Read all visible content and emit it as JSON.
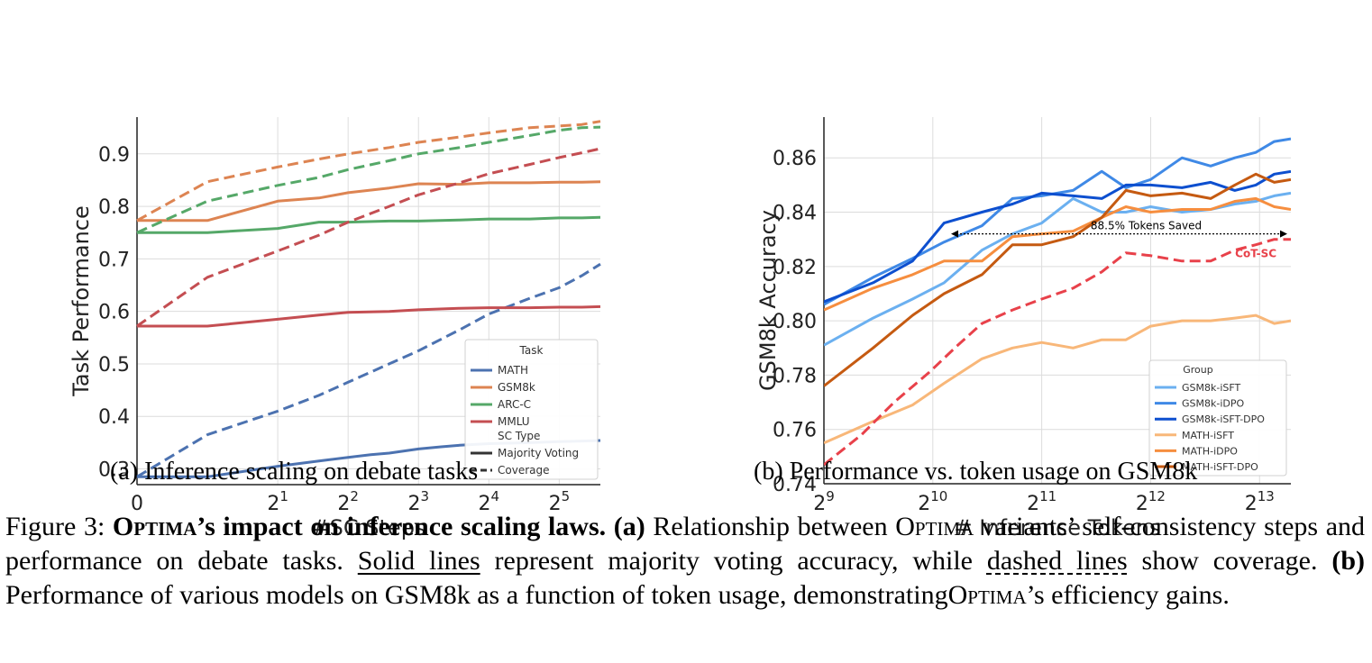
{
  "chart_data": [
    {
      "type": "line",
      "caption": "(a) Inference scaling on debate tasks",
      "xlabel": "#SC Steps",
      "ylabel": "Task Performance",
      "xscale": "symlog-base2",
      "xlim": [
        0,
        48
      ],
      "ylim": [
        0.27,
        0.97
      ],
      "xticks": [
        {
          "value": 0,
          "base": "0",
          "exp": ""
        },
        {
          "value": 2,
          "base": "2",
          "exp": "1"
        },
        {
          "value": 4,
          "base": "2",
          "exp": "2"
        },
        {
          "value": 8,
          "base": "2",
          "exp": "3"
        },
        {
          "value": 16,
          "base": "2",
          "exp": "4"
        },
        {
          "value": 32,
          "base": "2",
          "exp": "5"
        }
      ],
      "yticks": [
        0.3,
        0.4,
        0.5,
        0.6,
        0.7,
        0.8,
        0.9
      ],
      "grid": true,
      "legend": {
        "placement": "bottom-right",
        "task_title": "Task",
        "sc_title": "SC Type",
        "tasks": [
          "MATH",
          "GSM8k",
          "ARC-C",
          "MMLU"
        ],
        "sc_types": [
          {
            "label": "Majority Voting",
            "style": "solid"
          },
          {
            "label": "Coverage",
            "style": "dashed"
          }
        ]
      },
      "series": [
        {
          "name": "MATH",
          "sc_type": "Majority Voting",
          "color": "#4c72b0",
          "style": "solid",
          "x": [
            0,
            1,
            2,
            3,
            4,
            5,
            6,
            8,
            10,
            12,
            16,
            24,
            32,
            40,
            48
          ],
          "y": [
            0.285,
            0.285,
            0.305,
            0.315,
            0.322,
            0.327,
            0.33,
            0.338,
            0.342,
            0.345,
            0.348,
            0.35,
            0.352,
            0.353,
            0.354
          ]
        },
        {
          "name": "MATH",
          "sc_type": "Coverage",
          "color": "#4c72b0",
          "style": "dashed",
          "x": [
            0,
            1,
            2,
            3,
            4,
            6,
            8,
            12,
            16,
            24,
            32,
            40,
            48
          ],
          "y": [
            0.285,
            0.365,
            0.41,
            0.44,
            0.465,
            0.5,
            0.525,
            0.565,
            0.595,
            0.625,
            0.645,
            0.668,
            0.69
          ]
        },
        {
          "name": "GSM8k",
          "sc_type": "Majority Voting",
          "color": "#dd8452",
          "style": "solid",
          "x": [
            0,
            1,
            2,
            3,
            4,
            6,
            8,
            12,
            16,
            24,
            32,
            40,
            48
          ],
          "y": [
            0.773,
            0.773,
            0.81,
            0.816,
            0.826,
            0.835,
            0.843,
            0.842,
            0.845,
            0.845,
            0.846,
            0.846,
            0.847
          ]
        },
        {
          "name": "GSM8k",
          "sc_type": "Coverage",
          "color": "#dd8452",
          "style": "dashed",
          "x": [
            0,
            1,
            2,
            3,
            4,
            6,
            8,
            12,
            16,
            24,
            32,
            40,
            48
          ],
          "y": [
            0.773,
            0.847,
            0.875,
            0.89,
            0.9,
            0.912,
            0.922,
            0.932,
            0.94,
            0.95,
            0.953,
            0.956,
            0.962
          ]
        },
        {
          "name": "ARC-C",
          "sc_type": "Majority Voting",
          "color": "#55a868",
          "style": "solid",
          "x": [
            0,
            1,
            2,
            3,
            4,
            6,
            8,
            12,
            16,
            24,
            32,
            40,
            48
          ],
          "y": [
            0.75,
            0.75,
            0.758,
            0.77,
            0.77,
            0.772,
            0.772,
            0.774,
            0.776,
            0.776,
            0.778,
            0.778,
            0.779
          ]
        },
        {
          "name": "ARC-C",
          "sc_type": "Coverage",
          "color": "#55a868",
          "style": "dashed",
          "x": [
            0,
            1,
            2,
            3,
            4,
            6,
            8,
            12,
            16,
            24,
            32,
            40,
            48
          ],
          "y": [
            0.75,
            0.81,
            0.84,
            0.855,
            0.87,
            0.887,
            0.9,
            0.912,
            0.922,
            0.935,
            0.945,
            0.95,
            0.951
          ]
        },
        {
          "name": "MMLU",
          "sc_type": "Majority Voting",
          "color": "#c44e52",
          "style": "solid",
          "x": [
            0,
            1,
            2,
            3,
            4,
            6,
            8,
            12,
            16,
            24,
            32,
            40,
            48
          ],
          "y": [
            0.572,
            0.572,
            0.585,
            0.593,
            0.598,
            0.6,
            0.603,
            0.606,
            0.607,
            0.607,
            0.608,
            0.608,
            0.609
          ]
        },
        {
          "name": "MMLU",
          "sc_type": "Coverage",
          "color": "#c44e52",
          "style": "dashed",
          "x": [
            0,
            1,
            2,
            3,
            4,
            6,
            8,
            12,
            16,
            24,
            32,
            40,
            48
          ],
          "y": [
            0.572,
            0.665,
            0.715,
            0.745,
            0.77,
            0.8,
            0.822,
            0.845,
            0.862,
            0.88,
            0.893,
            0.902,
            0.91
          ]
        }
      ]
    },
    {
      "type": "line",
      "caption": "(b) Performance vs. token usage on GSM8k",
      "xlabel": "# Inference Tokens",
      "ylabel": "GSM8k Accuracy",
      "xscale": "log2",
      "xlim": [
        512,
        10000
      ],
      "ylim": [
        0.74,
        0.875
      ],
      "xticks": [
        {
          "value": 512,
          "base": "2",
          "exp": "9"
        },
        {
          "value": 1024,
          "base": "2",
          "exp": "10"
        },
        {
          "value": 2048,
          "base": "2",
          "exp": "11"
        },
        {
          "value": 4096,
          "base": "2",
          "exp": "12"
        },
        {
          "value": 8192,
          "base": "2",
          "exp": "13"
        }
      ],
      "yticks": [
        0.74,
        0.76,
        0.78,
        0.8,
        0.82,
        0.84,
        0.86
      ],
      "grid": true,
      "legend": {
        "placement": "bottom-right",
        "title": "Group"
      },
      "annotations": [
        {
          "text": "88.5% Tokens Saved",
          "type": "double-arrow",
          "x_from": 1150,
          "x_to": 10000,
          "y": 0.832
        },
        {
          "text": "CoT-SC",
          "color": "#e8414a",
          "x": 8000,
          "y": 0.8235
        }
      ],
      "series": [
        {
          "name": "GSM8k-iSFT",
          "color": "#6bb0f0",
          "style": "solid",
          "x": [
            512,
            700,
            900,
            1100,
            1400,
            1700,
            2048,
            2500,
            3000,
            3500,
            4096,
            5000,
            6000,
            7000,
            8000,
            9000,
            10000
          ],
          "y": [
            0.791,
            0.801,
            0.808,
            0.814,
            0.826,
            0.832,
            0.836,
            0.845,
            0.84,
            0.84,
            0.842,
            0.84,
            0.841,
            0.843,
            0.844,
            0.846,
            0.847
          ]
        },
        {
          "name": "GSM8k-iDPO",
          "color": "#3f89e6",
          "style": "solid",
          "x": [
            512,
            700,
            900,
            1100,
            1400,
            1700,
            2048,
            2500,
            3000,
            3500,
            4096,
            5000,
            6000,
            7000,
            8000,
            9000,
            10000
          ],
          "y": [
            0.806,
            0.816,
            0.823,
            0.829,
            0.835,
            0.845,
            0.846,
            0.848,
            0.855,
            0.849,
            0.852,
            0.86,
            0.857,
            0.86,
            0.862,
            0.866,
            0.867
          ]
        },
        {
          "name": "GSM8k-iSFT-DPO",
          "color": "#0d4fcf",
          "style": "solid",
          "x": [
            512,
            700,
            900,
            1100,
            1400,
            1700,
            2048,
            2500,
            3000,
            3500,
            4096,
            5000,
            6000,
            7000,
            8000,
            9000,
            10000
          ],
          "y": [
            0.807,
            0.814,
            0.822,
            0.836,
            0.84,
            0.843,
            0.847,
            0.846,
            0.845,
            0.85,
            0.85,
            0.849,
            0.851,
            0.848,
            0.85,
            0.854,
            0.855
          ]
        },
        {
          "name": "MATH-iSFT",
          "color": "#f8b779",
          "style": "solid",
          "x": [
            512,
            700,
            900,
            1100,
            1400,
            1700,
            2048,
            2500,
            3000,
            3500,
            4096,
            5000,
            6000,
            7000,
            8000,
            9000,
            10000
          ],
          "y": [
            0.755,
            0.763,
            0.769,
            0.777,
            0.786,
            0.79,
            0.792,
            0.79,
            0.793,
            0.793,
            0.798,
            0.8,
            0.8,
            0.801,
            0.802,
            0.799,
            0.8
          ]
        },
        {
          "name": "MATH-iDPO",
          "color": "#f68e3f",
          "style": "solid",
          "x": [
            512,
            700,
            900,
            1100,
            1400,
            1700,
            2048,
            2500,
            3000,
            3500,
            4096,
            5000,
            6000,
            7000,
            8000,
            9000,
            10000
          ],
          "y": [
            0.804,
            0.812,
            0.817,
            0.822,
            0.822,
            0.831,
            0.832,
            0.833,
            0.838,
            0.842,
            0.84,
            0.841,
            0.841,
            0.844,
            0.845,
            0.842,
            0.841
          ]
        },
        {
          "name": "MATH-iSFT-DPO",
          "color": "#c55a11",
          "style": "solid",
          "x": [
            512,
            700,
            900,
            1100,
            1400,
            1700,
            2048,
            2500,
            3000,
            3500,
            4096,
            5000,
            6000,
            7000,
            8000,
            9000,
            10000
          ],
          "y": [
            0.776,
            0.79,
            0.802,
            0.81,
            0.817,
            0.828,
            0.828,
            0.831,
            0.838,
            0.848,
            0.846,
            0.847,
            0.845,
            0.85,
            0.854,
            0.851,
            0.852
          ]
        },
        {
          "name": "",
          "color": "#e8414a",
          "style": "dashed",
          "x": [
            512,
            650,
            800,
            1000,
            1200,
            1400,
            1700,
            2048,
            2500,
            3000,
            3500,
            4096,
            5000,
            6000,
            7000,
            8000,
            9000,
            10000
          ],
          "y": [
            0.747,
            0.758,
            0.77,
            0.781,
            0.791,
            0.799,
            0.804,
            0.808,
            0.812,
            0.818,
            0.825,
            0.824,
            0.822,
            0.822,
            0.826,
            0.828,
            0.83,
            0.83
          ]
        }
      ]
    }
  ],
  "caption": {
    "sub_a": "(a) Inference scaling on debate tasks",
    "sub_b": "(b) Performance vs. token usage on GSM8k",
    "fig_label": "Figure 3:",
    "title_sc": "Optima",
    "title_rest": "’s impact on inference scaling laws.",
    "a_label": "(a)",
    "a_text_1": "Relationship between",
    "a_sc": "Optima",
    "a_text_2": "variants’ self-consistency steps and performance on debate tasks.",
    "solid_lines": "Solid lines",
    "a_text_3": "represent majority voting accuracy, while",
    "dashed_lines": "dashed lines",
    "a_text_4": "show coverage.",
    "b_label": "(b)",
    "b_text_1": "Performance of various models on GSM8k as a function of token usage, demonstrating",
    "b_sc": "Optima",
    "b_text_2": "’s efficiency gains."
  }
}
